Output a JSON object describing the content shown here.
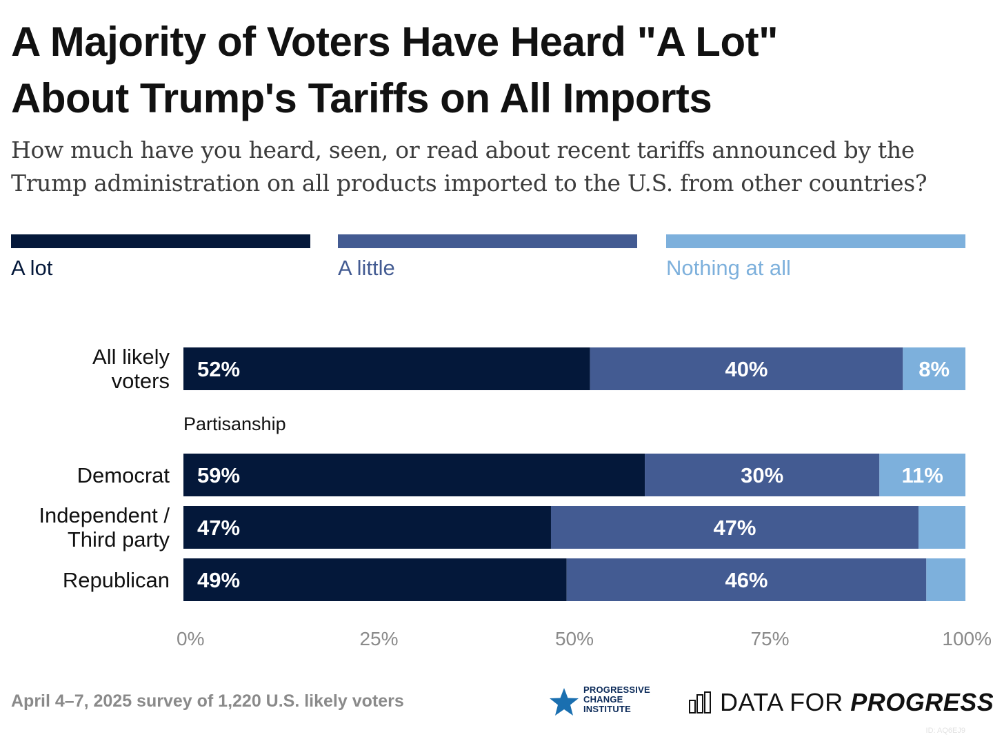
{
  "title": {
    "line1": "A Majority of Voters Have Heard \"A Lot\"",
    "line2": "About Trump's Tariffs on All Imports"
  },
  "subtitle": {
    "line1": "How much have you heard, seen, or read about recent tariffs announced by the",
    "line2": "Trump administration on all products imported to the U.S. from other countries?"
  },
  "colors": {
    "a_lot": "#04183a",
    "a_little": "#435b92",
    "nothing": "#7db0dc"
  },
  "legend": [
    {
      "label": "A lot",
      "color": "#04183a"
    },
    {
      "label": "A little",
      "color": "#435b92"
    },
    {
      "label": "Nothing at all",
      "color": "#7db0dc"
    }
  ],
  "group_label": "Partisanship",
  "row_labels": {
    "all": [
      "All likely",
      "voters"
    ],
    "dem": [
      "Democrat"
    ],
    "ind": [
      "Independent /",
      "Third party"
    ],
    "rep": [
      "Republican"
    ]
  },
  "footer": {
    "note": "April 4–7, 2025 survey of 1,220 U.S. likely voters",
    "pci": [
      "PROGRESSIVE",
      "CHANGE",
      "INSTITUTE"
    ],
    "dfp_plain": "DATA FOR ",
    "dfp_bold": "PROGRESS",
    "watermark": "ID: AQ6EJ9"
  },
  "chart_data": {
    "type": "bar",
    "orientation": "horizontal",
    "stacked": true,
    "categories": [
      "All likely voters",
      "Democrat",
      "Independent / Third party",
      "Republican"
    ],
    "series": [
      {
        "name": "A lot",
        "values": [
          52,
          59,
          47,
          49
        ],
        "labels": [
          "52%",
          "59%",
          "47%",
          "49%"
        ]
      },
      {
        "name": "A little",
        "values": [
          40,
          30,
          47,
          46
        ],
        "labels": [
          "40%",
          "30%",
          "47%",
          "46%"
        ]
      },
      {
        "name": "Nothing at all",
        "values": [
          8,
          11,
          6,
          5
        ],
        "labels": [
          "8%",
          "11%",
          "",
          ""
        ]
      }
    ],
    "xlim": [
      0,
      100
    ],
    "xticks": [
      0,
      25,
      50,
      75,
      100
    ],
    "xtick_labels": [
      "0%",
      "25%",
      "50%",
      "75%",
      "100%"
    ],
    "legend_position": "top"
  }
}
